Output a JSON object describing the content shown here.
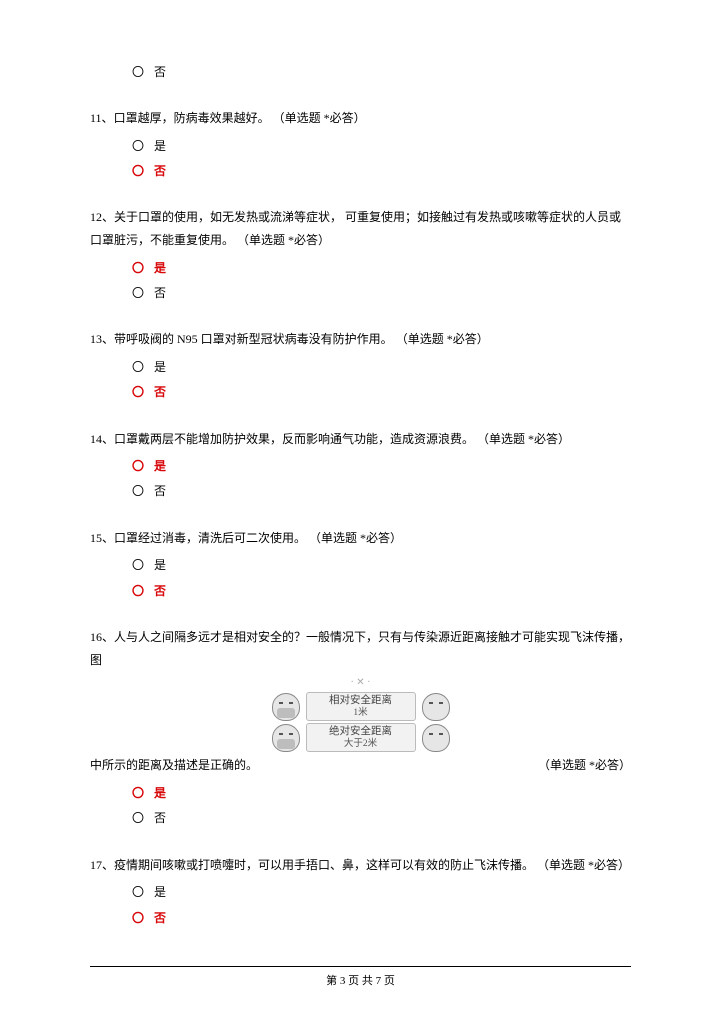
{
  "colors": {
    "answer_red": "#d8070a"
  },
  "orphan_option": {
    "label": "否",
    "selected": false
  },
  "questions": [
    {
      "num": "11、",
      "text": "口罩越厚，防病毒效果越好。",
      "annot": "（单选题 *必答）",
      "options": [
        {
          "label": "是",
          "selected": false
        },
        {
          "label": "否",
          "selected": true
        }
      ]
    },
    {
      "num": "12、",
      "text": "关于口罩的使用，如无发热或流涕等症状， 可重复使用；如接触过有发热或咳嗽等症状的人员或口罩脏污，不能重复使用。",
      "annot": "（单选题 *必答）",
      "options": [
        {
          "label": "是",
          "selected": true
        },
        {
          "label": "否",
          "selected": false
        }
      ]
    },
    {
      "num": "13、",
      "text": "带呼吸阀的 N95 口罩对新型冠状病毒没有防护作用。",
      "annot": "（单选题 *必答）",
      "options": [
        {
          "label": "是",
          "selected": false
        },
        {
          "label": "否",
          "selected": true
        }
      ]
    },
    {
      "num": "14、",
      "text": "口罩戴两层不能增加防护效果，反而影响通气功能，造成资源浪费。",
      "annot": "（单选题 *必答）",
      "options": [
        {
          "label": "是",
          "selected": true
        },
        {
          "label": "否",
          "selected": false
        }
      ]
    },
    {
      "num": "15、",
      "text": "口罩经过消毒，清洗后可二次使用。",
      "annot": "（单选题 *必答）",
      "options": [
        {
          "label": "是",
          "selected": false
        },
        {
          "label": "否",
          "selected": true
        }
      ]
    },
    {
      "num": "16、",
      "text_a": "人与人之间隔多远才是相对安全的？一般情况下，只有与传染源近距离接触才可能实现飞沫传播，图",
      "text_b": "中所示的距离及描述是正确的。",
      "annot": "（单选题 *必答）",
      "diagram": {
        "row1": {
          "label": "相对安全距离",
          "sub": "1米"
        },
        "row2": {
          "label": "绝对安全距离",
          "sub": "大于2米"
        }
      },
      "options": [
        {
          "label": "是",
          "selected": true
        },
        {
          "label": "否",
          "selected": false
        }
      ]
    },
    {
      "num": "17、",
      "text": "疫情期间咳嗽或打喷嚏时，可以用手捂口、鼻，这样可以有效的防止飞沫传播。",
      "annot": "（单选题 *必答）",
      "options": [
        {
          "label": "是",
          "selected": false
        },
        {
          "label": "否",
          "selected": true
        }
      ]
    }
  ],
  "footer": {
    "text": "第 3 页 共 7 页"
  }
}
